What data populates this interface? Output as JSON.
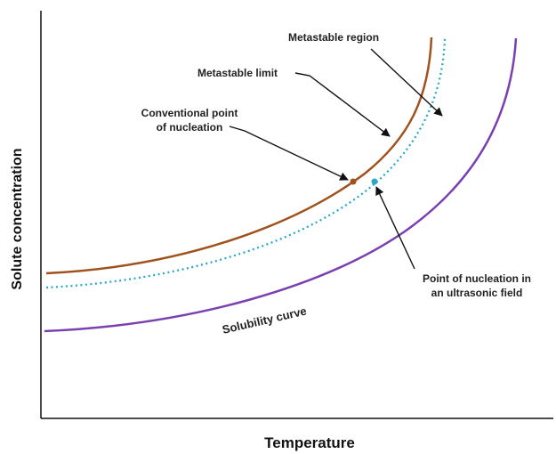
{
  "chart_data": {
    "type": "line",
    "xlabel": "Temperature",
    "ylabel": "Solute concentration",
    "grid": false,
    "legend": "none",
    "series": [
      {
        "name": "Metastable limit",
        "style": "solid",
        "color": "#a0521d"
      },
      {
        "name": "",
        "style": "dotted",
        "color": "#2aa8c8"
      },
      {
        "name": "Solubility curve",
        "style": "solid",
        "color": "#7a3fb0"
      }
    ],
    "points": [
      {
        "name": "Conventional point of nucleation",
        "color": "#a0521d"
      },
      {
        "name": "Point of nucleation in an ultrasonic field",
        "color": "#2aa8c8"
      }
    ],
    "annotations": {
      "metastable_region": "Metastable region",
      "metastable_limit": "Metastable limit",
      "conventional_line1": "Conventional point",
      "conventional_line2": "of nucleation",
      "ultrasonic_line1": "Point of nucleation in",
      "ultrasonic_line2": "an ultrasonic field",
      "solubility": "Solubility curve"
    }
  }
}
